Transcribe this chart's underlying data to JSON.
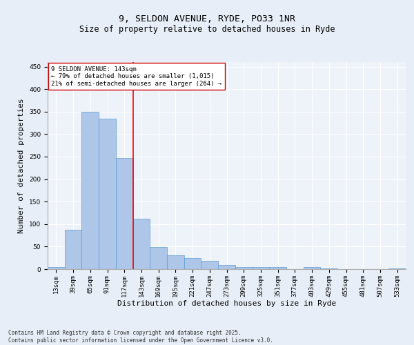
{
  "title1": "9, SELDON AVENUE, RYDE, PO33 1NR",
  "title2": "Size of property relative to detached houses in Ryde",
  "xlabel": "Distribution of detached houses by size in Ryde",
  "ylabel": "Number of detached properties",
  "categories": [
    "13sqm",
    "39sqm",
    "65sqm",
    "91sqm",
    "117sqm",
    "143sqm",
    "169sqm",
    "195sqm",
    "221sqm",
    "247sqm",
    "273sqm",
    "299sqm",
    "325sqm",
    "351sqm",
    "377sqm",
    "403sqm",
    "429sqm",
    "455sqm",
    "481sqm",
    "507sqm",
    "533sqm"
  ],
  "values": [
    5,
    88,
    349,
    335,
    247,
    112,
    49,
    30,
    24,
    19,
    9,
    5,
    4,
    5,
    0,
    4,
    1,
    0,
    0,
    0,
    1
  ],
  "bar_color": "#aec6e8",
  "bar_edge_color": "#5b9bd5",
  "red_line_index": 5,
  "red_line_label": "9 SELDON AVENUE: 143sqm",
  "annotation_line2": "← 79% of detached houses are smaller (1,015)",
  "annotation_line3": "21% of semi-detached houses are larger (264) →",
  "annotation_box_color": "#ffffff",
  "annotation_box_edge_color": "#cc0000",
  "ylim": [
    0,
    460
  ],
  "yticks": [
    0,
    50,
    100,
    150,
    200,
    250,
    300,
    350,
    400,
    450
  ],
  "bg_color": "#e8eef7",
  "plot_bg_color": "#eef2f9",
  "footer": "Contains HM Land Registry data © Crown copyright and database right 2025.\nContains public sector information licensed under the Open Government Licence v3.0.",
  "title_fontsize": 9.5,
  "subtitle_fontsize": 8.5,
  "tick_fontsize": 6.5,
  "label_fontsize": 8,
  "annotation_fontsize": 6.5,
  "footer_fontsize": 5.5
}
